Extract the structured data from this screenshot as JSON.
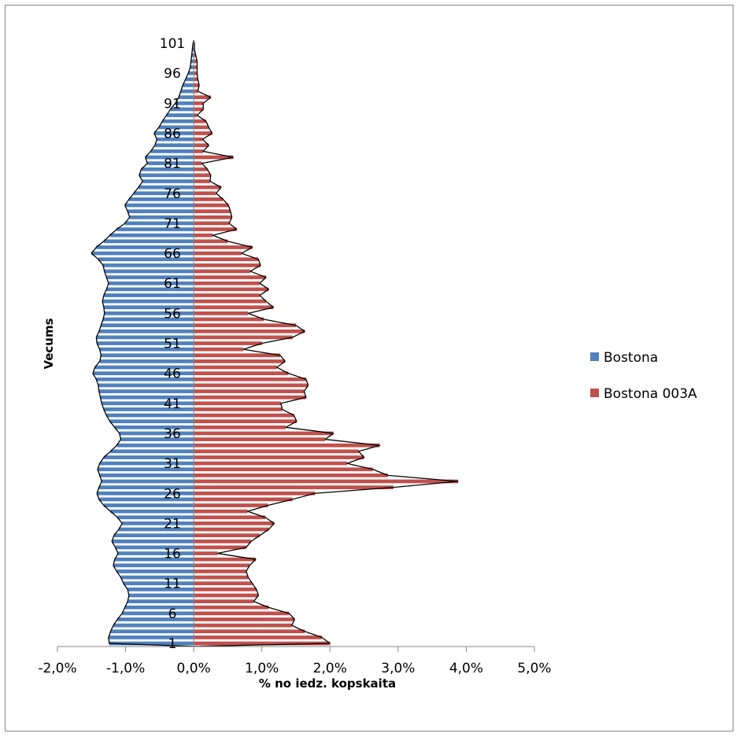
{
  "chart_data": {
    "type": "bar",
    "orientation": "horizontal",
    "title": "",
    "xlabel": "% no iedz. kopskaita",
    "ylabel": "Vecums",
    "xlim": [
      -0.02,
      0.05
    ],
    "x_ticks": [
      -0.02,
      -0.01,
      0.0,
      0.01,
      0.02,
      0.03,
      0.04,
      0.05
    ],
    "x_tick_labels": [
      "-2,0%",
      "-1,0%",
      "0,0%",
      "1,0%",
      "2,0%",
      "3,0%",
      "4,0%",
      "5,0%"
    ],
    "y_tick_labels": [
      "1",
      "6",
      "11",
      "16",
      "21",
      "26",
      "31",
      "36",
      "41",
      "46",
      "51",
      "56",
      "61",
      "66",
      "71",
      "76",
      "81",
      "86",
      "91",
      "96",
      "101"
    ],
    "legend_position": "right",
    "categories": [
      1,
      2,
      3,
      4,
      5,
      6,
      7,
      8,
      9,
      10,
      11,
      12,
      13,
      14,
      15,
      16,
      17,
      18,
      19,
      20,
      21,
      22,
      23,
      24,
      25,
      26,
      27,
      28,
      29,
      30,
      31,
      32,
      33,
      34,
      35,
      36,
      37,
      38,
      39,
      40,
      41,
      42,
      43,
      44,
      45,
      46,
      47,
      48,
      49,
      50,
      51,
      52,
      53,
      54,
      55,
      56,
      57,
      58,
      59,
      60,
      61,
      62,
      63,
      64,
      65,
      66,
      67,
      68,
      69,
      70,
      71,
      72,
      73,
      74,
      75,
      76,
      77,
      78,
      79,
      80,
      81,
      82,
      83,
      84,
      85,
      86,
      87,
      88,
      89,
      90,
      91,
      92,
      93,
      94,
      95,
      96,
      97,
      98,
      99,
      100,
      101
    ],
    "series": [
      {
        "name": "Bostona",
        "color": "#4f81bd",
        "values": [
          -0.0124,
          -0.0125,
          -0.0122,
          -0.0118,
          -0.0112,
          -0.0105,
          -0.0101,
          -0.0097,
          -0.0095,
          -0.0097,
          -0.0103,
          -0.0107,
          -0.0113,
          -0.0118,
          -0.0116,
          -0.0111,
          -0.0115,
          -0.012,
          -0.0117,
          -0.011,
          -0.0105,
          -0.0112,
          -0.0122,
          -0.0132,
          -0.0139,
          -0.0142,
          -0.0139,
          -0.0135,
          -0.0138,
          -0.0141,
          -0.0138,
          -0.0132,
          -0.0122,
          -0.0113,
          -0.0107,
          -0.0109,
          -0.0116,
          -0.0123,
          -0.0128,
          -0.0132,
          -0.0135,
          -0.0137,
          -0.0139,
          -0.014,
          -0.0143,
          -0.0148,
          -0.0145,
          -0.0138,
          -0.0136,
          -0.0138,
          -0.0142,
          -0.0143,
          -0.0139,
          -0.0136,
          -0.0133,
          -0.0131,
          -0.0132,
          -0.0134,
          -0.0132,
          -0.0128,
          -0.0125,
          -0.0128,
          -0.0131,
          -0.0133,
          -0.014,
          -0.015,
          -0.0143,
          -0.0132,
          -0.0123,
          -0.0113,
          -0.0101,
          -0.0094,
          -0.0097,
          -0.0101,
          -0.0095,
          -0.0088,
          -0.0081,
          -0.0075,
          -0.008,
          -0.0077,
          -0.0068,
          -0.0071,
          -0.0063,
          -0.0057,
          -0.0054,
          -0.0058,
          -0.0051,
          -0.0046,
          -0.004,
          -0.0034,
          -0.0027,
          -0.0022,
          -0.0019,
          -0.0016,
          -0.0012,
          -0.0008,
          -0.0005,
          -0.0004,
          -0.0003,
          -0.0002,
          -0.0001
        ]
      },
      {
        "name": "Bostona 003A",
        "color": "#c0504d",
        "values": [
          0.02,
          0.0188,
          0.0163,
          0.0144,
          0.0148,
          0.014,
          0.011,
          0.0088,
          0.0095,
          0.0092,
          0.0086,
          0.008,
          0.0077,
          0.0082,
          0.0091,
          0.0035,
          0.0077,
          0.0084,
          0.0097,
          0.011,
          0.0118,
          0.0105,
          0.0079,
          0.0109,
          0.0145,
          0.0178,
          0.0293,
          0.0388,
          0.0285,
          0.0263,
          0.0225,
          0.025,
          0.0242,
          0.0273,
          0.0193,
          0.0205,
          0.0135,
          0.0151,
          0.0147,
          0.013,
          0.0128,
          0.0165,
          0.0162,
          0.0168,
          0.0165,
          0.0139,
          0.0122,
          0.0134,
          0.0127,
          0.0073,
          0.01,
          0.0145,
          0.0163,
          0.015,
          0.0103,
          0.008,
          0.0117,
          0.0106,
          0.0097,
          0.011,
          0.0097,
          0.0106,
          0.0083,
          0.0098,
          0.0095,
          0.007,
          0.0086,
          0.005,
          0.0028,
          0.0063,
          0.0052,
          0.0056,
          0.0054,
          0.0051,
          0.0043,
          0.0033,
          0.004,
          0.0024,
          0.0025,
          0.002,
          0.0012,
          0.0058,
          0.0014,
          0.0022,
          0.0013,
          0.0027,
          0.0022,
          0.0018,
          0.0005,
          0.0014,
          0.0014,
          0.0025,
          0.0006,
          0.0008,
          0.0006,
          0.0005,
          0.0005,
          0.0005,
          0.0003,
          0.0001,
          0.0001
        ]
      }
    ]
  }
}
